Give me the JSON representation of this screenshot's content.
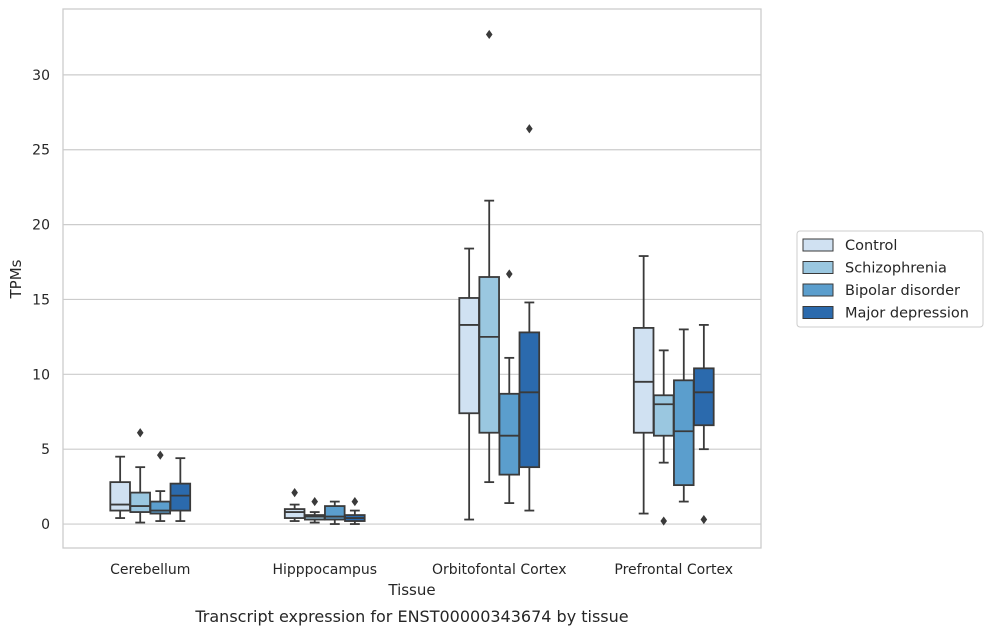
{
  "chart_data": {
    "type": "box",
    "caption": "Transcript expression for ENST00000343674 by tissue",
    "xlabel": "Tissue",
    "ylabel": "TPMs",
    "ylim": [
      -1.6,
      34.4
    ],
    "yticks": [
      0,
      5,
      10,
      15,
      20,
      25,
      30
    ],
    "grid": "horizontal",
    "legend_position": "right",
    "categories": [
      "Cerebellum",
      "Hipppocampus",
      "Orbitofontal Cortex",
      "Prefrontal Cortex"
    ],
    "series": [
      {
        "name": "Control",
        "color": "#d0e1f2",
        "boxes": [
          {
            "whisker_low": 0.4,
            "q1": 0.9,
            "median": 1.3,
            "q3": 2.8,
            "whisker_high": 4.5,
            "outliers": []
          },
          {
            "whisker_low": 0.2,
            "q1": 0.4,
            "median": 0.8,
            "q3": 1.0,
            "whisker_high": 1.3,
            "outliers": [
              2.1
            ]
          },
          {
            "whisker_low": 0.3,
            "q1": 7.4,
            "median": 13.3,
            "q3": 15.1,
            "whisker_high": 18.4,
            "outliers": []
          },
          {
            "whisker_low": 0.7,
            "q1": 6.1,
            "median": 9.5,
            "q3": 13.1,
            "whisker_high": 17.9,
            "outliers": []
          }
        ]
      },
      {
        "name": "Schizophrenia",
        "color": "#9ac7e0",
        "boxes": [
          {
            "whisker_low": 0.1,
            "q1": 0.8,
            "median": 1.2,
            "q3": 2.1,
            "whisker_high": 3.8,
            "outliers": [
              6.1
            ]
          },
          {
            "whisker_low": 0.1,
            "q1": 0.3,
            "median": 0.5,
            "q3": 0.6,
            "whisker_high": 0.8,
            "outliers": [
              1.5
            ]
          },
          {
            "whisker_low": 2.8,
            "q1": 6.1,
            "median": 12.5,
            "q3": 16.5,
            "whisker_high": 21.6,
            "outliers": [
              32.7
            ]
          },
          {
            "whisker_low": 4.1,
            "q1": 5.9,
            "median": 8.0,
            "q3": 8.6,
            "whisker_high": 11.6,
            "outliers": [
              0.2
            ]
          }
        ]
      },
      {
        "name": "Bipolar disorder",
        "color": "#5b9ecd",
        "boxes": [
          {
            "whisker_low": 0.2,
            "q1": 0.7,
            "median": 0.9,
            "q3": 1.5,
            "whisker_high": 2.2,
            "outliers": [
              4.6
            ]
          },
          {
            "whisker_low": 0.0,
            "q1": 0.3,
            "median": 0.5,
            "q3": 1.2,
            "whisker_high": 1.5,
            "outliers": []
          },
          {
            "whisker_low": 1.4,
            "q1": 3.3,
            "median": 5.9,
            "q3": 8.7,
            "whisker_high": 11.1,
            "outliers": [
              16.7
            ]
          },
          {
            "whisker_low": 1.5,
            "q1": 2.6,
            "median": 6.2,
            "q3": 9.6,
            "whisker_high": 13.0,
            "outliers": []
          }
        ]
      },
      {
        "name": "Major depression",
        "color": "#2b6aad",
        "boxes": [
          {
            "whisker_low": 0.2,
            "q1": 0.9,
            "median": 1.9,
            "q3": 2.7,
            "whisker_high": 4.4,
            "outliers": []
          },
          {
            "whisker_low": 0.0,
            "q1": 0.2,
            "median": 0.4,
            "q3": 0.6,
            "whisker_high": 0.9,
            "outliers": [
              1.5
            ]
          },
          {
            "whisker_low": 0.9,
            "q1": 3.8,
            "median": 8.8,
            "q3": 12.8,
            "whisker_high": 14.8,
            "outliers": [
              26.4
            ]
          },
          {
            "whisker_low": 5.0,
            "q1": 6.6,
            "median": 8.8,
            "q3": 10.4,
            "whisker_high": 13.3,
            "outliers": [
              0.3
            ]
          }
        ]
      }
    ]
  }
}
